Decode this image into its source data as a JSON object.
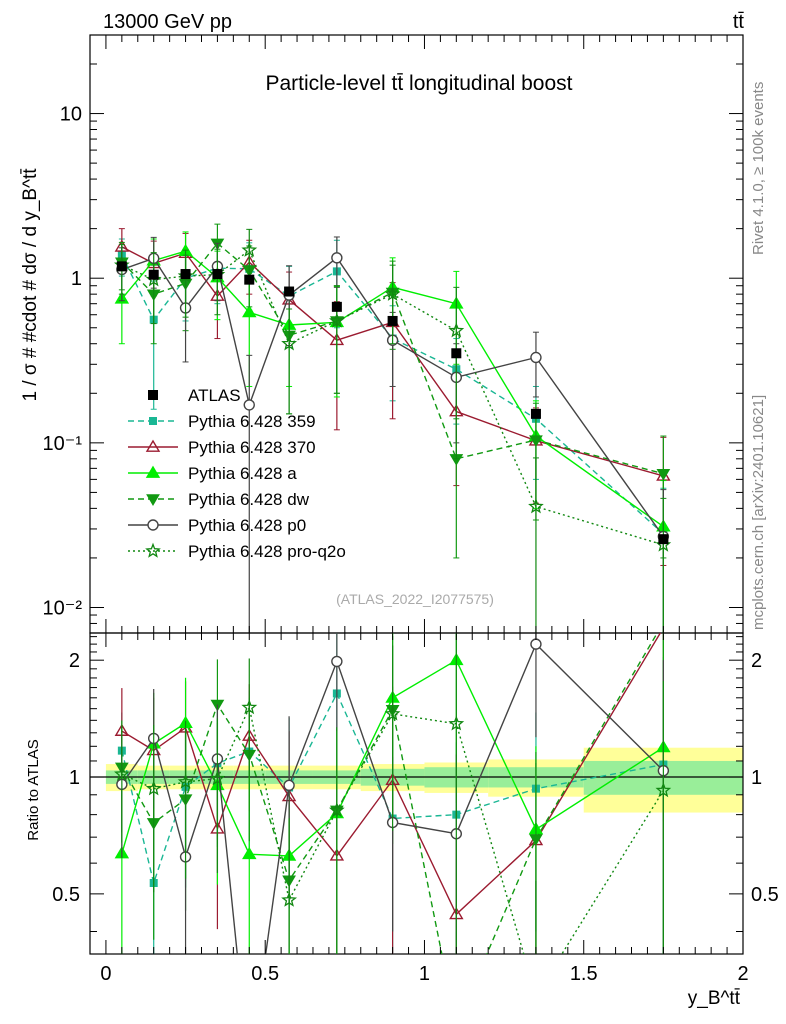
{
  "header": {
    "left": "13000 GeV pp",
    "right": "tt̄",
    "side_rivet": "Rivet 4.1.0, ≥ 100k events",
    "side_mcplots": "mcplots.cern.ch [arXiv:2401.10621]"
  },
  "chart_data": {
    "type": "line",
    "title": "Particle-level tt̄ longitudinal boost",
    "watermark": "(ATLAS_2022_I2077575)",
    "ylabel": "1 / σ # #cdot # dσ / d y_B^tt̄",
    "xlabel": "y_B^tt̄",
    "ratio_ylabel": "Ratio to ATLAS",
    "xlim": [
      -0.05,
      2.0
    ],
    "ylim": [
      0.007,
      30
    ],
    "yscale": "log",
    "ratio_ylim": [
      0.35,
      2.35
    ],
    "x_ticks": [
      0,
      0.5,
      1,
      1.5,
      2
    ],
    "x_tick_labels": [
      "0",
      "0.5",
      "1",
      "1.5",
      "2"
    ],
    "y_tick_labels": [
      "10⁻²",
      "10⁻¹",
      "1",
      "10"
    ],
    "ratio_tick_labels": [
      "0.5",
      "1",
      "2"
    ],
    "bin_edges": [
      0.0,
      0.1,
      0.2,
      0.3,
      0.4,
      0.5,
      0.65,
      0.8,
      1.0,
      1.2,
      1.5,
      2.0
    ],
    "x": [
      0.05,
      0.15,
      0.25,
      0.35,
      0.45,
      0.575,
      0.725,
      0.9,
      1.1,
      1.35,
      1.75
    ],
    "data": {
      "name": "ATLAS",
      "values": [
        1.18,
        1.05,
        1.06,
        1.06,
        0.98,
        0.83,
        0.67,
        0.55,
        0.35,
        0.15,
        0.026
      ],
      "band_total": [
        0.08,
        0.07,
        0.07,
        0.07,
        0.07,
        0.07,
        0.07,
        0.08,
        0.09,
        0.11,
        0.19
      ],
      "band_stat": [
        0.04,
        0.04,
        0.04,
        0.04,
        0.04,
        0.04,
        0.04,
        0.05,
        0.06,
        0.06,
        0.1
      ]
    },
    "series": [
      {
        "name": "Pythia 6.428 359",
        "color": "#1ab794",
        "marker": "square",
        "dash": "6,4",
        "values": [
          1.38,
          0.56,
          1.0,
          1.15,
          1.14,
          0.78,
          1.1,
          0.43,
          0.28,
          0.14,
          0.028
        ],
        "err": [
          0.35,
          0.4,
          0.45,
          0.45,
          0.5,
          0.4,
          0.6,
          0.25,
          0.15,
          0.08,
          0.025
        ]
      },
      {
        "name": "Pythia 6.428 370",
        "color": "#9b1b30",
        "marker": "triangle-open",
        "dash": "",
        "values": [
          1.55,
          1.23,
          1.42,
          0.78,
          1.25,
          0.74,
          0.42,
          0.54,
          0.155,
          0.103,
          0.063
        ],
        "err": [
          0.45,
          0.45,
          0.45,
          0.35,
          0.45,
          0.35,
          0.3,
          0.4,
          0.1,
          0.06,
          0.045
        ]
      },
      {
        "name": "Pythia 6.428 a",
        "color": "#00ee00",
        "marker": "triangle",
        "dash": "",
        "values": [
          0.75,
          1.28,
          1.46,
          1.01,
          0.62,
          0.52,
          0.54,
          0.88,
          0.7,
          0.11,
          0.031
        ],
        "err": [
          0.35,
          0.45,
          0.45,
          0.45,
          0.4,
          0.3,
          0.35,
          0.45,
          0.4,
          0.07,
          0.028
        ]
      },
      {
        "name": "Pythia 6.428 dw",
        "color": "#119911",
        "marker": "triangle-down",
        "dash": "6,4",
        "values": [
          1.25,
          0.8,
          0.93,
          1.63,
          1.12,
          0.45,
          0.55,
          0.82,
          0.08,
          0.104,
          0.065
        ],
        "err": [
          0.4,
          0.4,
          0.45,
          0.5,
          0.45,
          0.3,
          0.35,
          0.45,
          0.06,
          0.07,
          0.045
        ]
      },
      {
        "name": "Pythia 6.428 p0",
        "color": "#444444",
        "marker": "circle-open",
        "dash": "",
        "values": [
          1.13,
          1.32,
          0.66,
          1.18,
          0.17,
          0.79,
          1.33,
          0.42,
          0.25,
          0.33,
          0.027
        ],
        "err": [
          0.4,
          0.45,
          0.35,
          0.45,
          0.17,
          0.4,
          0.45,
          0.2,
          0.15,
          0.14,
          0.025
        ]
      },
      {
        "name": "Pythia 6.428 pro-q2o",
        "color": "#118811",
        "marker": "star",
        "dash": "2,3",
        "values": [
          1.2,
          0.98,
          1.03,
          1.05,
          1.48,
          0.4,
          0.55,
          0.8,
          0.48,
          0.041,
          0.024
        ],
        "err": [
          0.4,
          0.45,
          0.45,
          0.45,
          0.5,
          0.25,
          0.35,
          0.4,
          0.4,
          0.04,
          0.022
        ]
      }
    ]
  }
}
